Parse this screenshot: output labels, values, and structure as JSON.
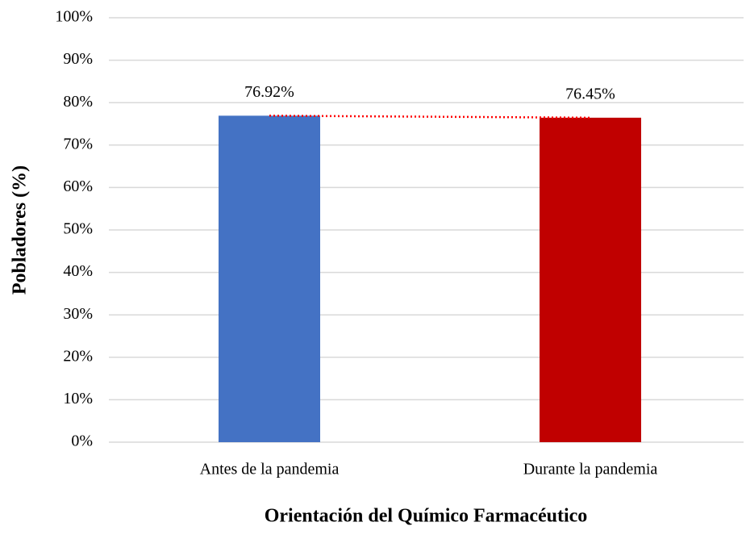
{
  "chart_data": {
    "type": "bar",
    "x_label": "Orientación del Químico Farmacéutico",
    "y_label": "Pobladores (%)",
    "categories": [
      "Antes de la pandemia",
      "Durante la pandemia"
    ],
    "values": [
      76.92,
      76.45
    ],
    "value_labels": [
      "76.92%",
      "76.45%"
    ],
    "colors": [
      "#4472c4",
      "#c00000"
    ],
    "connector_color": "#ff0000",
    "ylim": [
      0,
      100
    ],
    "yticks": [
      {
        "value": 0,
        "label": "0%"
      },
      {
        "value": 10,
        "label": "10%"
      },
      {
        "value": 20,
        "label": "20%"
      },
      {
        "value": 30,
        "label": "30%"
      },
      {
        "value": 40,
        "label": "40%"
      },
      {
        "value": 50,
        "label": "50%"
      },
      {
        "value": 60,
        "label": "60%"
      },
      {
        "value": 70,
        "label": "70%"
      },
      {
        "value": 80,
        "label": "80%"
      },
      {
        "value": 90,
        "label": "90%"
      },
      {
        "value": 100,
        "label": "100%"
      }
    ],
    "grid": true
  }
}
